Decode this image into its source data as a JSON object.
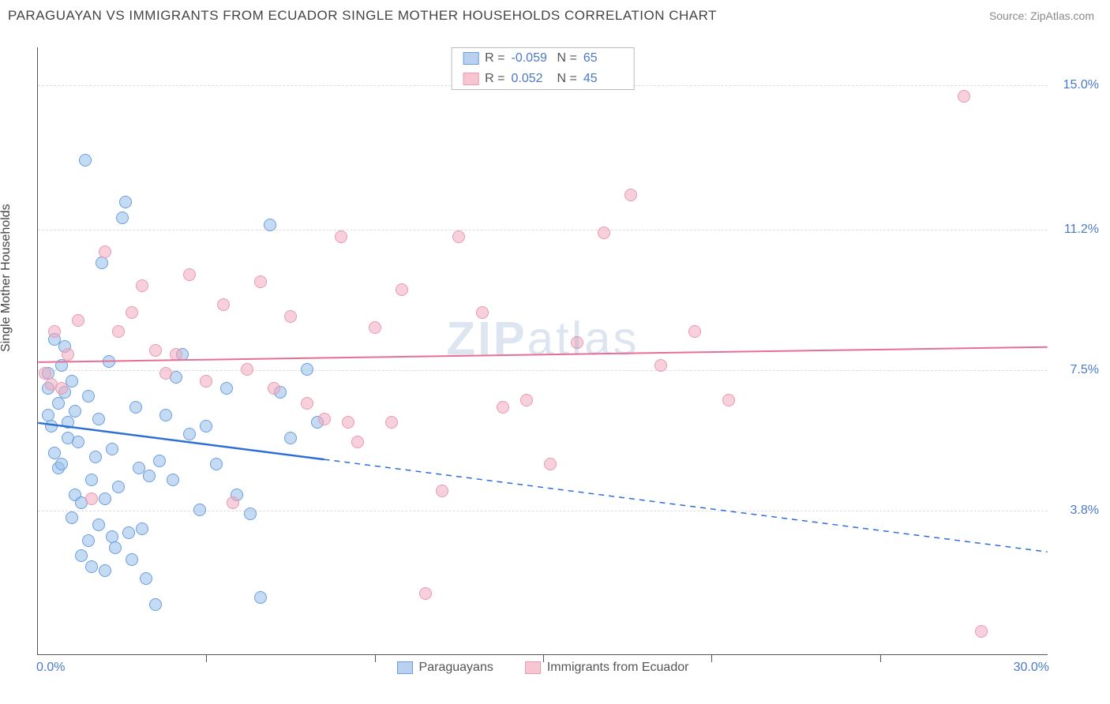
{
  "header": {
    "title": "PARAGUAYAN VS IMMIGRANTS FROM ECUADOR SINGLE MOTHER HOUSEHOLDS CORRELATION CHART",
    "source": "Source: ZipAtlas.com"
  },
  "chart": {
    "type": "scatter",
    "ylabel": "Single Mother Households",
    "xlim": [
      0,
      30
    ],
    "ylim": [
      0,
      16
    ],
    "x_ticks_minor_step": 5,
    "x_axis_labels": [
      {
        "value": 0,
        "label": "0.0%"
      },
      {
        "value": 30,
        "label": "30.0%"
      }
    ],
    "y_gridlines": [
      {
        "value": 3.8,
        "label": "3.8%"
      },
      {
        "value": 7.5,
        "label": "7.5%"
      },
      {
        "value": 11.2,
        "label": "11.2%"
      },
      {
        "value": 15.0,
        "label": "15.0%"
      }
    ],
    "background_color": "#ffffff",
    "grid_color": "#dddddd",
    "watermark": "ZIPatlas",
    "top_legend": [
      {
        "swatch_fill": "#b9d0ef",
        "swatch_border": "#6a9de0",
        "r": "-0.059",
        "n": "65"
      },
      {
        "swatch_fill": "#f6c7d2",
        "swatch_border": "#e89bb0",
        "r": "0.052",
        "n": "45"
      }
    ],
    "bottom_legend": [
      {
        "swatch_fill": "#b9d0ef",
        "swatch_border": "#6a9de0",
        "label": "Paraguayans"
      },
      {
        "swatch_fill": "#f6c7d2",
        "swatch_border": "#e89bb0",
        "label": "Immigrants from Ecuador"
      }
    ],
    "series": [
      {
        "name": "paraguayans",
        "marker_fill": "rgba(150,190,235,0.55)",
        "marker_border": "#6a9de0",
        "marker_size": 16,
        "trend": {
          "color": "#2e6fd6",
          "width": 2.5,
          "solid_from_x": 0,
          "solid_to_x": 8.5,
          "y_at_x0": 6.1,
          "y_at_xmax": 2.7
        },
        "points": [
          {
            "x": 0.3,
            "y": 7.0
          },
          {
            "x": 0.3,
            "y": 7.4
          },
          {
            "x": 0.3,
            "y": 6.3
          },
          {
            "x": 0.4,
            "y": 6.0
          },
          {
            "x": 0.5,
            "y": 5.3
          },
          {
            "x": 0.5,
            "y": 8.3
          },
          {
            "x": 0.6,
            "y": 6.6
          },
          {
            "x": 0.6,
            "y": 4.9
          },
          {
            "x": 0.7,
            "y": 7.6
          },
          {
            "x": 0.7,
            "y": 5.0
          },
          {
            "x": 0.8,
            "y": 6.9
          },
          {
            "x": 0.8,
            "y": 8.1
          },
          {
            "x": 0.9,
            "y": 5.7
          },
          {
            "x": 0.9,
            "y": 6.1
          },
          {
            "x": 1.0,
            "y": 7.2
          },
          {
            "x": 1.0,
            "y": 3.6
          },
          {
            "x": 1.1,
            "y": 4.2
          },
          {
            "x": 1.1,
            "y": 6.4
          },
          {
            "x": 1.2,
            "y": 5.6
          },
          {
            "x": 1.3,
            "y": 2.6
          },
          {
            "x": 1.3,
            "y": 4.0
          },
          {
            "x": 1.4,
            "y": 13.0
          },
          {
            "x": 1.5,
            "y": 3.0
          },
          {
            "x": 1.5,
            "y": 6.8
          },
          {
            "x": 1.6,
            "y": 2.3
          },
          {
            "x": 1.6,
            "y": 4.6
          },
          {
            "x": 1.7,
            "y": 5.2
          },
          {
            "x": 1.8,
            "y": 3.4
          },
          {
            "x": 1.8,
            "y": 6.2
          },
          {
            "x": 1.9,
            "y": 10.3
          },
          {
            "x": 2.0,
            "y": 2.2
          },
          {
            "x": 2.0,
            "y": 4.1
          },
          {
            "x": 2.1,
            "y": 7.7
          },
          {
            "x": 2.2,
            "y": 3.1
          },
          {
            "x": 2.2,
            "y": 5.4
          },
          {
            "x": 2.3,
            "y": 2.8
          },
          {
            "x": 2.4,
            "y": 4.4
          },
          {
            "x": 2.5,
            "y": 11.5
          },
          {
            "x": 2.6,
            "y": 11.9
          },
          {
            "x": 2.7,
            "y": 3.2
          },
          {
            "x": 2.8,
            "y": 2.5
          },
          {
            "x": 2.9,
            "y": 6.5
          },
          {
            "x": 3.0,
            "y": 4.9
          },
          {
            "x": 3.1,
            "y": 3.3
          },
          {
            "x": 3.2,
            "y": 2.0
          },
          {
            "x": 3.3,
            "y": 4.7
          },
          {
            "x": 3.5,
            "y": 1.3
          },
          {
            "x": 3.6,
            "y": 5.1
          },
          {
            "x": 3.8,
            "y": 6.3
          },
          {
            "x": 4.0,
            "y": 4.6
          },
          {
            "x": 4.1,
            "y": 7.3
          },
          {
            "x": 4.3,
            "y": 7.9
          },
          {
            "x": 4.5,
            "y": 5.8
          },
          {
            "x": 4.8,
            "y": 3.8
          },
          {
            "x": 5.0,
            "y": 6.0
          },
          {
            "x": 5.3,
            "y": 5.0
          },
          {
            "x": 5.6,
            "y": 7.0
          },
          {
            "x": 5.9,
            "y": 4.2
          },
          {
            "x": 6.3,
            "y": 3.7
          },
          {
            "x": 6.6,
            "y": 1.5
          },
          {
            "x": 6.9,
            "y": 11.3
          },
          {
            "x": 7.2,
            "y": 6.9
          },
          {
            "x": 7.5,
            "y": 5.7
          },
          {
            "x": 8.0,
            "y": 7.5
          },
          {
            "x": 8.3,
            "y": 6.1
          }
        ]
      },
      {
        "name": "ecuador",
        "marker_fill": "rgba(240,170,190,0.55)",
        "marker_border": "#e89bb0",
        "marker_size": 16,
        "trend": {
          "color": "#e86f93",
          "width": 2,
          "solid_from_x": 0,
          "solid_to_x": 30,
          "y_at_x0": 7.7,
          "y_at_xmax": 8.1
        },
        "points": [
          {
            "x": 0.2,
            "y": 7.4
          },
          {
            "x": 0.4,
            "y": 7.1
          },
          {
            "x": 0.5,
            "y": 8.5
          },
          {
            "x": 0.7,
            "y": 7.0
          },
          {
            "x": 0.9,
            "y": 7.9
          },
          {
            "x": 1.2,
            "y": 8.8
          },
          {
            "x": 1.6,
            "y": 4.1
          },
          {
            "x": 2.0,
            "y": 10.6
          },
          {
            "x": 2.4,
            "y": 8.5
          },
          {
            "x": 2.8,
            "y": 9.0
          },
          {
            "x": 3.1,
            "y": 9.7
          },
          {
            "x": 3.5,
            "y": 8.0
          },
          {
            "x": 3.8,
            "y": 7.4
          },
          {
            "x": 4.1,
            "y": 7.9
          },
          {
            "x": 4.5,
            "y": 10.0
          },
          {
            "x": 5.0,
            "y": 7.2
          },
          {
            "x": 5.5,
            "y": 9.2
          },
          {
            "x": 5.8,
            "y": 4.0
          },
          {
            "x": 6.2,
            "y": 7.5
          },
          {
            "x": 6.6,
            "y": 9.8
          },
          {
            "x": 7.0,
            "y": 7.0
          },
          {
            "x": 7.5,
            "y": 8.9
          },
          {
            "x": 8.0,
            "y": 6.6
          },
          {
            "x": 8.5,
            "y": 6.2
          },
          {
            "x": 9.0,
            "y": 11.0
          },
          {
            "x": 9.5,
            "y": 5.6
          },
          {
            "x": 10.0,
            "y": 8.6
          },
          {
            "x": 10.5,
            "y": 6.1
          },
          {
            "x": 10.8,
            "y": 9.6
          },
          {
            "x": 11.5,
            "y": 1.6
          },
          {
            "x": 12.0,
            "y": 4.3
          },
          {
            "x": 12.5,
            "y": 11.0
          },
          {
            "x": 13.2,
            "y": 9.0
          },
          {
            "x": 13.8,
            "y": 6.5
          },
          {
            "x": 14.5,
            "y": 6.7
          },
          {
            "x": 15.2,
            "y": 5.0
          },
          {
            "x": 16.0,
            "y": 8.2
          },
          {
            "x": 16.8,
            "y": 11.1
          },
          {
            "x": 17.6,
            "y": 12.1
          },
          {
            "x": 18.5,
            "y": 7.6
          },
          {
            "x": 19.5,
            "y": 8.5
          },
          {
            "x": 20.5,
            "y": 6.7
          },
          {
            "x": 27.5,
            "y": 14.7
          },
          {
            "x": 28.0,
            "y": 0.6
          },
          {
            "x": 9.2,
            "y": 6.1
          }
        ]
      }
    ]
  }
}
